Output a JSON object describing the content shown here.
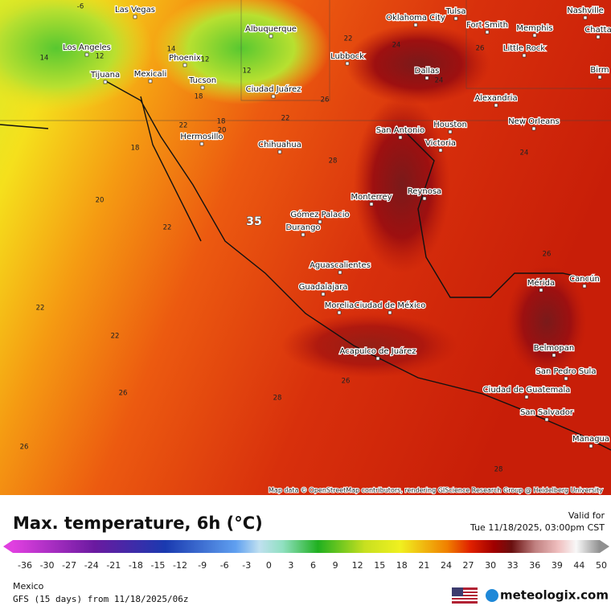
{
  "map": {
    "attribution": "Map data © OpenStreetMap contributors, rendering GIScience Research Group @ Heidelberg University",
    "cities": [
      "Las Vegas",
      "Oklahoma City",
      "Tulsa",
      "Nashville",
      "Chatta",
      "Albuquerque",
      "Fort Smith",
      "Memphis",
      "Los Angeles",
      "Phoenix",
      "Lubbock",
      "Little Rock",
      "Birm",
      "Tijuana",
      "Mexicali",
      "Tucson",
      "Dallas",
      "Ciudad Juárez",
      "Alexandria",
      "Hermosillo",
      "San Antonio",
      "Houston",
      "New Orleans",
      "Chihuahua",
      "Victoria",
      "Monterrey",
      "Reynosa",
      "Gómez Palacio",
      "Durango",
      "Aguascalientes",
      "Guadalajara",
      "Mérida",
      "Cancún",
      "Morelia",
      "Ciudad de México",
      "Belmopan",
      "Acapulco de Juárez",
      "San Pedro Sula",
      "Ciudad de Guatemala",
      "San Salvador",
      "Managua"
    ],
    "contour_labels": [
      -6,
      14,
      12,
      14,
      12,
      12,
      22,
      24,
      22,
      18,
      22,
      20,
      18,
      18,
      26,
      20,
      22,
      28,
      24,
      26,
      22,
      22,
      24,
      26,
      26,
      26,
      28,
      26,
      28
    ],
    "marker": 35
  },
  "footer": {
    "title": "Max. temperature, 6h (°C)",
    "valid_label": "Valid for",
    "valid_time": "Tue 11/18/2025, 03:00pm CST",
    "region": "Mexico",
    "model": "GFS (15 days) from 11/18/2025/06z",
    "brand": "meteologix.com",
    "scale_ticks": [
      -36,
      -30,
      -27,
      -24,
      -21,
      -18,
      -15,
      -12,
      -9,
      -6,
      -3,
      0,
      3,
      6,
      9,
      12,
      15,
      18,
      21,
      24,
      27,
      30,
      33,
      36,
      39,
      44,
      50
    ]
  }
}
